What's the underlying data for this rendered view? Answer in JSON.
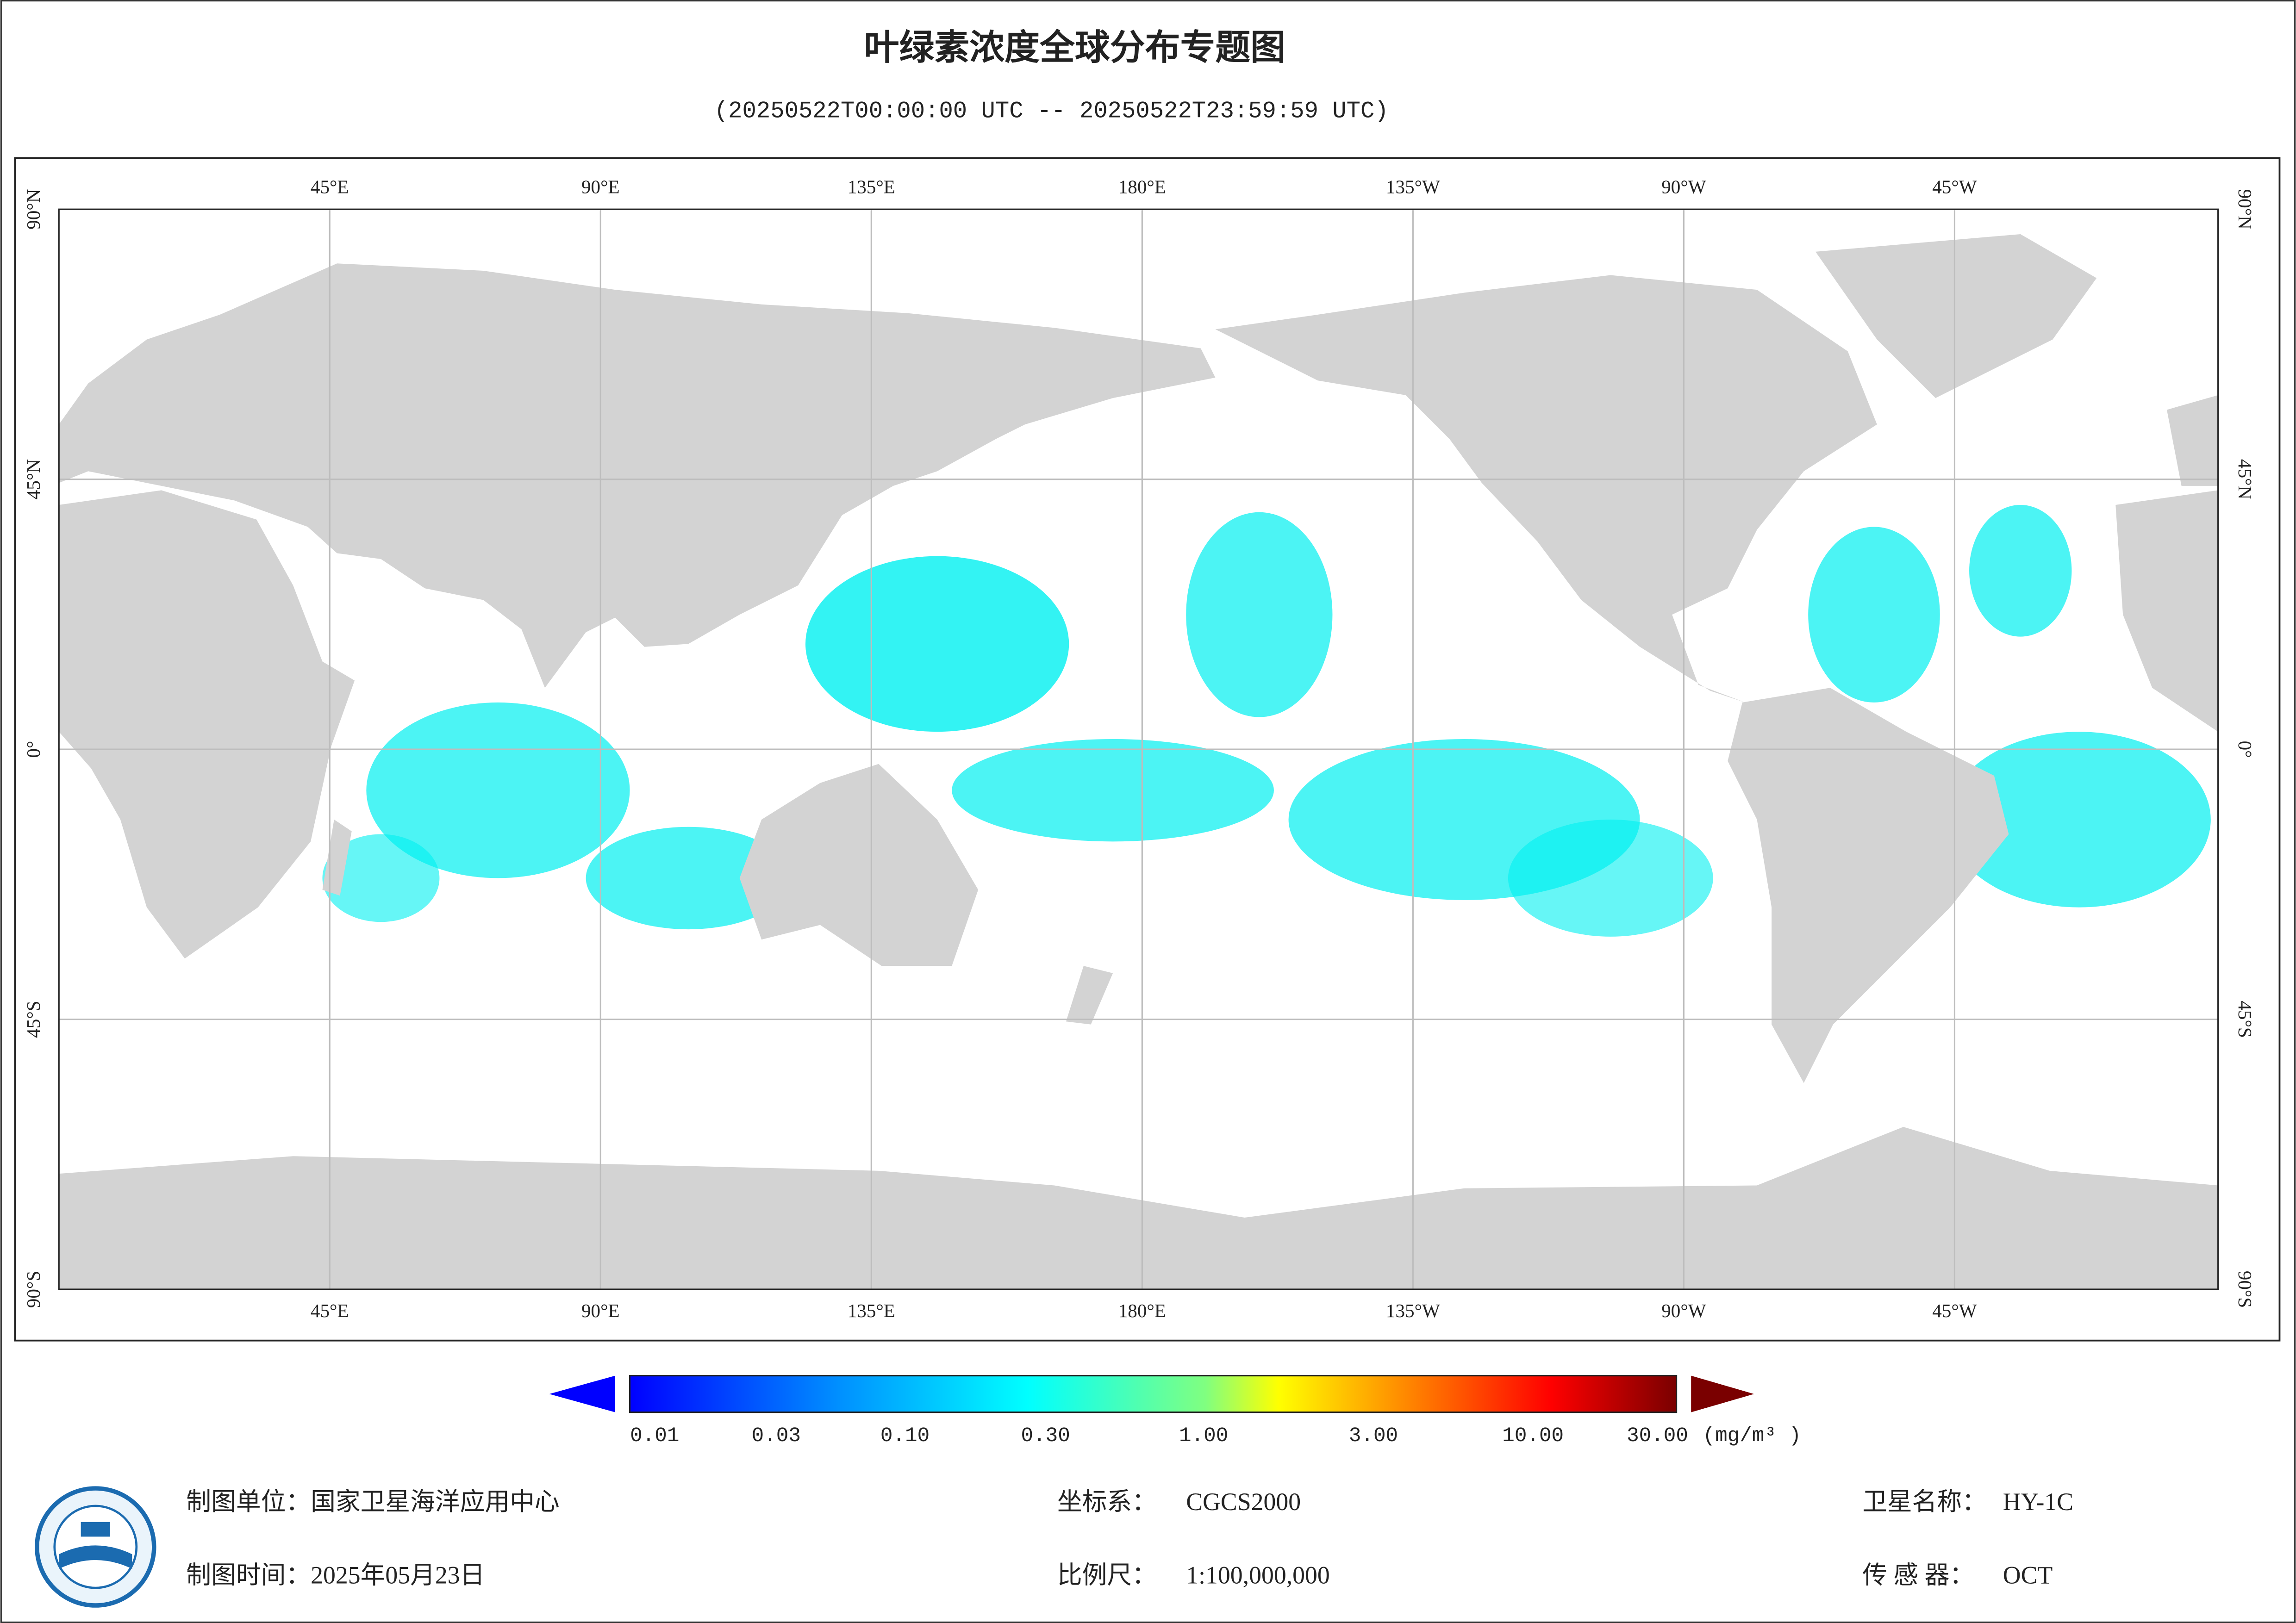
{
  "header": {
    "title": "叶绿素浓度全球分布专题图",
    "subtitle": "(20250522T00:00:00 UTC -- 20250522T23:59:59 UTC)"
  },
  "map": {
    "longitude_labels": [
      "45°E",
      "90°E",
      "135°E",
      "180°E",
      "135°W",
      "90°W",
      "45°W"
    ],
    "latitude_labels": [
      "90°N",
      "45°N",
      "0°",
      "45°S",
      "90°S"
    ]
  },
  "colorbar": {
    "labels": [
      "0.01",
      "0.03",
      "0.10",
      "0.30",
      "1.00",
      "3.00",
      "10.00",
      "30.00"
    ],
    "unit": "(mg/m³ )"
  },
  "footer": {
    "producer": {
      "label": "制图单位：",
      "value": "国家卫星海洋应用中心"
    },
    "date": {
      "label": "制图时间：",
      "value": "2025年05月23日"
    },
    "crs": {
      "label": "坐标系：",
      "value": "CGCS2000"
    },
    "scale": {
      "label": "比例尺：",
      "value": "1:100,000,000"
    },
    "satellite": {
      "label": "卫星名称：",
      "value": "HY-1C"
    },
    "sensor": {
      "label": "传 感 器：",
      "value": "OCT"
    }
  }
}
